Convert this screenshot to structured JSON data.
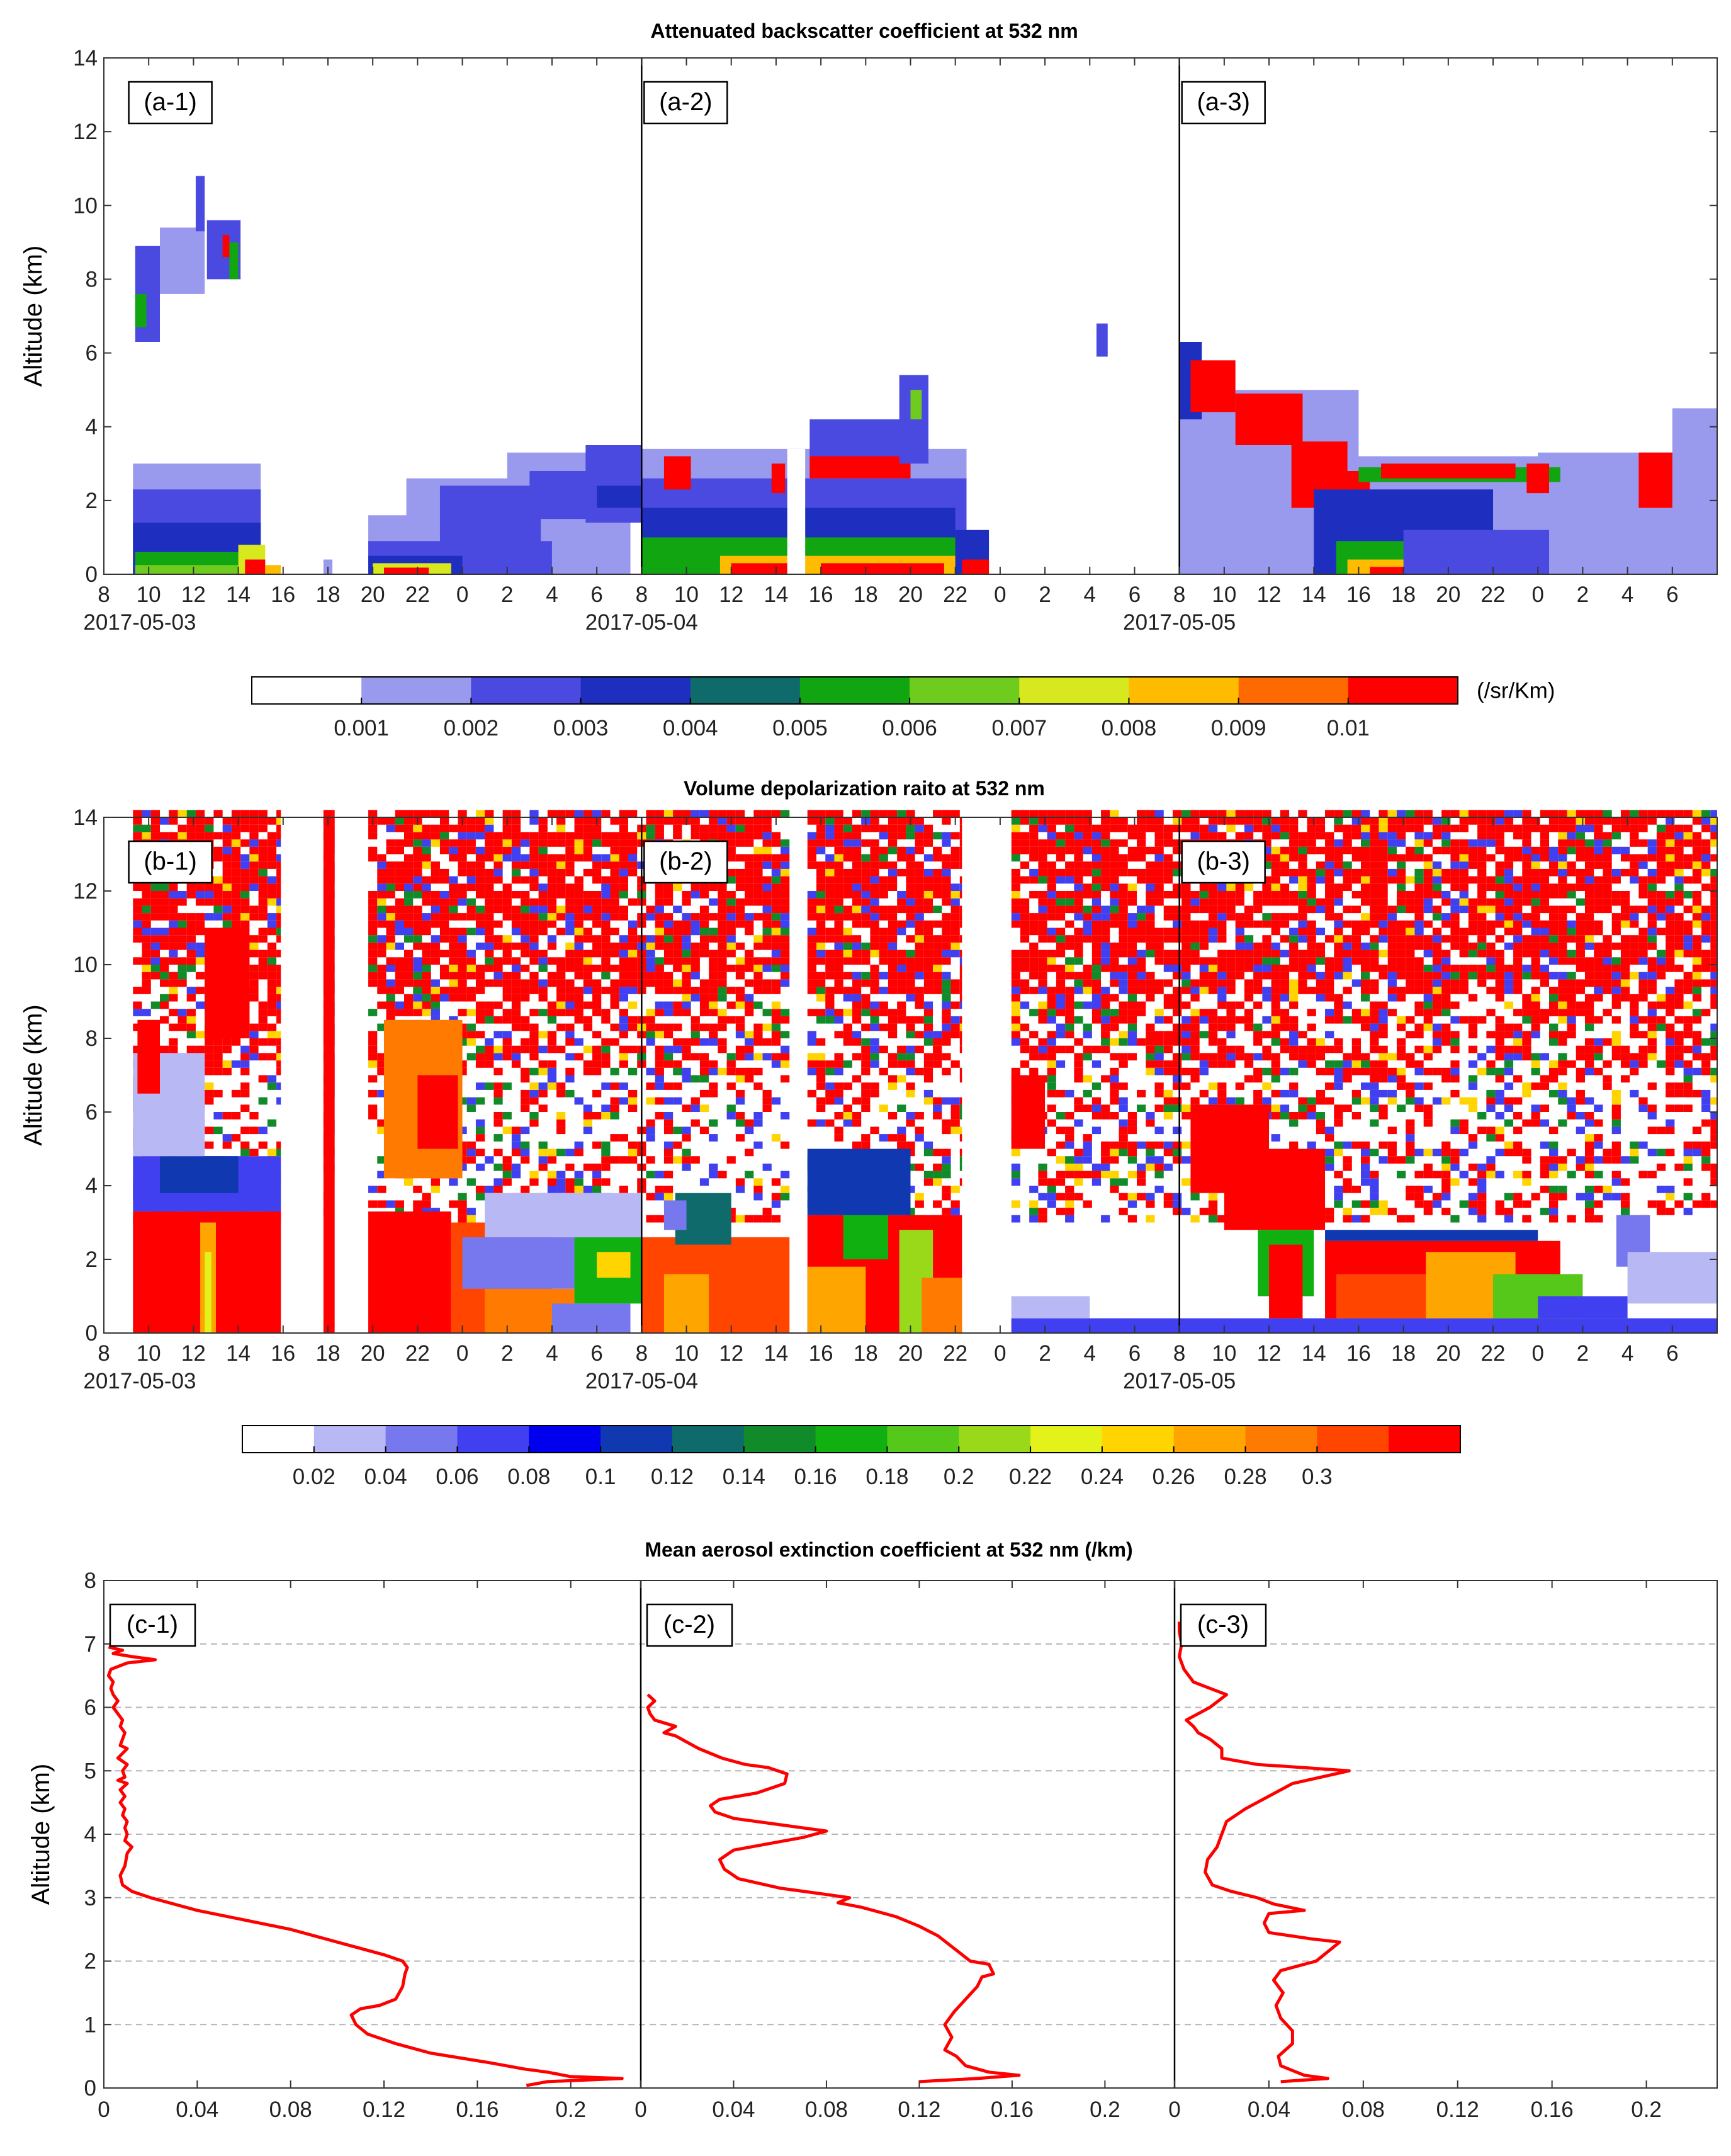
{
  "chart_data": [
    {
      "panel": "a",
      "type": "heatmap",
      "title": "Attenuated backscatter coefficient at 532 nm",
      "ylabel": "Altitude (km)",
      "ylim": [
        0,
        14
      ],
      "yticks": [
        "0",
        "2",
        "4",
        "6",
        "8",
        "10",
        "12",
        "14"
      ],
      "time_hours": [
        8,
        80
      ],
      "xtick_labels": [
        "8",
        "10",
        "12",
        "14",
        "16",
        "18",
        "20",
        "22",
        "0",
        "2",
        "4",
        "6",
        "8",
        "10",
        "12",
        "14",
        "16",
        "18",
        "20",
        "22",
        "0",
        "2",
        "4",
        "6",
        "8",
        "10",
        "12",
        "14",
        "16",
        "18",
        "20",
        "22",
        "0",
        "2",
        "4",
        "6"
      ],
      "date_labels": [
        {
          "label": "2017-05-03",
          "at_hour": 9.6
        },
        {
          "label": "2017-05-04",
          "at_hour": 32
        },
        {
          "label": "2017-05-05",
          "at_hour": 56
        }
      ],
      "sub_panels": [
        "(a-1)",
        "(a-2)",
        "(a-3)"
      ],
      "sub_panel_hours": [
        9,
        32,
        56
      ],
      "divider_hours": [
        32,
        56
      ],
      "colorbar": {
        "unit": "(/sr/Km)",
        "colors": [
          "#ffffff",
          "#9999ee",
          "#4a4ae0",
          "#1e2fbf",
          "#0f6b6b",
          "#11a511",
          "#6fcc1f",
          "#d8e81f",
          "#ffbb00",
          "#ff6a00",
          "#ff0000"
        ],
        "tick_labels": [
          "0.001",
          "0.002",
          "0.003",
          "0.004",
          "0.005",
          "0.006",
          "0.007",
          "0.008",
          "0.009",
          "0.01"
        ]
      }
    },
    {
      "panel": "b",
      "type": "heatmap",
      "title": "Volume depolarization raito at 532 nm",
      "ylabel": "Altitude (km)",
      "ylim": [
        0,
        14
      ],
      "yticks": [
        "0",
        "2",
        "4",
        "6",
        "8",
        "10",
        "12",
        "14"
      ],
      "time_hours": [
        8,
        80
      ],
      "xtick_labels": [
        "8",
        "10",
        "12",
        "14",
        "16",
        "18",
        "20",
        "22",
        "0",
        "2",
        "4",
        "6",
        "8",
        "10",
        "12",
        "14",
        "16",
        "18",
        "20",
        "22",
        "0",
        "2",
        "4",
        "6",
        "8",
        "10",
        "12",
        "14",
        "16",
        "18",
        "20",
        "22",
        "0",
        "2",
        "4",
        "6"
      ],
      "date_labels": [
        {
          "label": "2017-05-03",
          "at_hour": 9.6
        },
        {
          "label": "2017-05-04",
          "at_hour": 32
        },
        {
          "label": "2017-05-05",
          "at_hour": 56
        }
      ],
      "sub_panels": [
        "(b-1)",
        "(b-2)",
        "(b-3)"
      ],
      "sub_panel_hours": [
        9,
        32,
        56
      ],
      "divider_hours": [
        32,
        56
      ],
      "colorbar": {
        "unit": "",
        "colors": [
          "#ffffff",
          "#b8b8f5",
          "#7878ee",
          "#4040f0",
          "#0000ee",
          "#1038b0",
          "#0f6b6b",
          "#118a2a",
          "#11b011",
          "#55c81a",
          "#9ad81a",
          "#e2f21a",
          "#ffd400",
          "#ffa500",
          "#ff7a00",
          "#ff4500",
          "#ff0000"
        ],
        "tick_labels": [
          "0.02",
          "0.04",
          "0.06",
          "0.08",
          "0.1",
          "0.12",
          "0.14",
          "0.16",
          "0.18",
          "0.2",
          "0.22",
          "0.24",
          "0.26",
          "0.28",
          "0.3"
        ]
      }
    },
    {
      "panel": "c",
      "type": "line",
      "title": "Mean aerosol extinction coefficient at 532 nm (/km)",
      "ylabel": "Altitude (km)",
      "ylim": [
        0,
        8
      ],
      "yticks": [
        "0",
        "1",
        "2",
        "3",
        "4",
        "5",
        "6",
        "7",
        "8"
      ],
      "xlim": [
        0,
        0.23
      ],
      "xticks": [
        "0",
        "0.04",
        "0.08",
        "0.12",
        "0.16",
        "0.2"
      ],
      "gridlines_y": [
        1,
        2,
        3,
        4,
        5,
        6,
        7
      ],
      "line_color": "#ff0000",
      "series": [
        {
          "name": "(c-1)",
          "points": [
            [
              0.181,
              0.04
            ],
            [
              0.19,
              0.1
            ],
            [
              0.222,
              0.15
            ],
            [
              0.2,
              0.18
            ],
            [
              0.19,
              0.25
            ],
            [
              0.18,
              0.3
            ],
            [
              0.165,
              0.4
            ],
            [
              0.14,
              0.55
            ],
            [
              0.125,
              0.7
            ],
            [
              0.113,
              0.85
            ],
            [
              0.108,
              1.0
            ],
            [
              0.106,
              1.15
            ],
            [
              0.11,
              1.25
            ],
            [
              0.118,
              1.3
            ],
            [
              0.125,
              1.4
            ],
            [
              0.128,
              1.6
            ],
            [
              0.129,
              1.8
            ],
            [
              0.13,
              1.9
            ],
            [
              0.128,
              2.0
            ],
            [
              0.12,
              2.1
            ],
            [
              0.1,
              2.3
            ],
            [
              0.08,
              2.5
            ],
            [
              0.06,
              2.65
            ],
            [
              0.04,
              2.8
            ],
            [
              0.02,
              3.0
            ],
            [
              0.012,
              3.1
            ],
            [
              0.008,
              3.2
            ],
            [
              0.007,
              3.35
            ],
            [
              0.009,
              3.5
            ],
            [
              0.01,
              3.7
            ],
            [
              0.012,
              3.8
            ],
            [
              0.009,
              3.9
            ],
            [
              0.01,
              4.0
            ],
            [
              0.009,
              4.1
            ],
            [
              0.01,
              4.2
            ],
            [
              0.008,
              4.3
            ],
            [
              0.009,
              4.4
            ],
            [
              0.007,
              4.5
            ],
            [
              0.009,
              4.6
            ],
            [
              0.007,
              4.7
            ],
            [
              0.01,
              4.8
            ],
            [
              0.006,
              4.85
            ],
            [
              0.009,
              4.9
            ],
            [
              0.008,
              5.0
            ],
            [
              0.01,
              5.1
            ],
            [
              0.006,
              5.2
            ],
            [
              0.01,
              5.35
            ],
            [
              0.007,
              5.4
            ],
            [
              0.008,
              5.5
            ],
            [
              0.009,
              5.6
            ],
            [
              0.007,
              5.7
            ],
            [
              0.008,
              5.8
            ],
            [
              0.006,
              5.9
            ],
            [
              0.004,
              6.0
            ],
            [
              0.006,
              6.1
            ],
            [
              0.004,
              6.2
            ],
            [
              0.003,
              6.3
            ],
            [
              0.004,
              6.4
            ],
            [
              0.002,
              6.5
            ],
            [
              0.003,
              6.6
            ],
            [
              0.01,
              6.7
            ],
            [
              0.022,
              6.75
            ],
            [
              0.012,
              6.8
            ],
            [
              0.004,
              6.85
            ],
            [
              0.008,
              6.9
            ],
            [
              0.002,
              6.95
            ]
          ]
        },
        {
          "name": "(c-2)",
          "points": [
            [
              0.12,
              0.1
            ],
            [
              0.145,
              0.15
            ],
            [
              0.163,
              0.2
            ],
            [
              0.15,
              0.25
            ],
            [
              0.14,
              0.35
            ],
            [
              0.136,
              0.5
            ],
            [
              0.131,
              0.6
            ],
            [
              0.134,
              0.8
            ],
            [
              0.131,
              1.0
            ],
            [
              0.135,
              1.2
            ],
            [
              0.14,
              1.4
            ],
            [
              0.145,
              1.6
            ],
            [
              0.147,
              1.75
            ],
            [
              0.152,
              1.8
            ],
            [
              0.15,
              1.95
            ],
            [
              0.142,
              2.0
            ],
            [
              0.135,
              2.2
            ],
            [
              0.128,
              2.4
            ],
            [
              0.12,
              2.55
            ],
            [
              0.11,
              2.7
            ],
            [
              0.105,
              2.75
            ],
            [
              0.095,
              2.85
            ],
            [
              0.085,
              2.92
            ],
            [
              0.09,
              3.0
            ],
            [
              0.08,
              3.05
            ],
            [
              0.06,
              3.15
            ],
            [
              0.042,
              3.3
            ],
            [
              0.036,
              3.45
            ],
            [
              0.034,
              3.6
            ],
            [
              0.04,
              3.75
            ],
            [
              0.055,
              3.85
            ],
            [
              0.07,
              3.95
            ],
            [
              0.08,
              4.05
            ],
            [
              0.06,
              4.15
            ],
            [
              0.04,
              4.25
            ],
            [
              0.032,
              4.35
            ],
            [
              0.03,
              4.45
            ],
            [
              0.034,
              4.55
            ],
            [
              0.05,
              4.65
            ],
            [
              0.062,
              4.8
            ],
            [
              0.063,
              4.95
            ],
            [
              0.055,
              5.05
            ],
            [
              0.045,
              5.1
            ],
            [
              0.035,
              5.2
            ],
            [
              0.025,
              5.35
            ],
            [
              0.02,
              5.45
            ],
            [
              0.015,
              5.55
            ],
            [
              0.01,
              5.6
            ],
            [
              0.015,
              5.7
            ],
            [
              0.006,
              5.8
            ],
            [
              0.004,
              5.9
            ],
            [
              0.003,
              6.0
            ],
            [
              0.006,
              6.1
            ],
            [
              0.003,
              6.2
            ]
          ]
        },
        {
          "name": "(c-3)",
          "points": [
            [
              0.045,
              0.1
            ],
            [
              0.065,
              0.15
            ],
            [
              0.055,
              0.2
            ],
            [
              0.045,
              0.35
            ],
            [
              0.044,
              0.5
            ],
            [
              0.05,
              0.7
            ],
            [
              0.05,
              0.9
            ],
            [
              0.045,
              1.1
            ],
            [
              0.043,
              1.3
            ],
            [
              0.046,
              1.5
            ],
            [
              0.042,
              1.7
            ],
            [
              0.045,
              1.85
            ],
            [
              0.06,
              2.0
            ],
            [
              0.07,
              2.3
            ],
            [
              0.058,
              2.35
            ],
            [
              0.04,
              2.45
            ],
            [
              0.038,
              2.6
            ],
            [
              0.04,
              2.75
            ],
            [
              0.055,
              2.8
            ],
            [
              0.042,
              2.9
            ],
            [
              0.035,
              3.0
            ],
            [
              0.024,
              3.1
            ],
            [
              0.016,
              3.2
            ],
            [
              0.013,
              3.4
            ],
            [
              0.014,
              3.6
            ],
            [
              0.018,
              3.8
            ],
            [
              0.02,
              4.0
            ],
            [
              0.022,
              4.2
            ],
            [
              0.03,
              4.4
            ],
            [
              0.04,
              4.6
            ],
            [
              0.05,
              4.8
            ],
            [
              0.074,
              5.0
            ],
            [
              0.055,
              5.05
            ],
            [
              0.035,
              5.1
            ],
            [
              0.02,
              5.2
            ],
            [
              0.02,
              5.35
            ],
            [
              0.015,
              5.5
            ],
            [
              0.01,
              5.6
            ],
            [
              0.008,
              5.7
            ],
            [
              0.005,
              5.8
            ],
            [
              0.01,
              5.9
            ],
            [
              0.015,
              6.0
            ],
            [
              0.022,
              6.2
            ],
            [
              0.015,
              6.3
            ],
            [
              0.008,
              6.4
            ],
            [
              0.004,
              6.6
            ],
            [
              0.002,
              6.8
            ],
            [
              0.003,
              7.0
            ],
            [
              0.002,
              7.2
            ],
            [
              0.002,
              7.35
            ]
          ]
        }
      ]
    }
  ]
}
